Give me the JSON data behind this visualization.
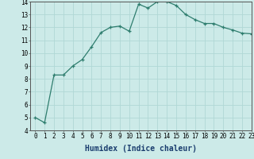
{
  "x": [
    0,
    1,
    2,
    3,
    4,
    5,
    6,
    7,
    8,
    9,
    10,
    11,
    12,
    13,
    14,
    15,
    16,
    17,
    18,
    19,
    20,
    21,
    22,
    23
  ],
  "y": [
    5.0,
    4.6,
    8.3,
    8.3,
    9.0,
    9.5,
    10.5,
    11.6,
    12.0,
    12.1,
    11.7,
    13.8,
    13.5,
    14.0,
    14.0,
    13.7,
    13.0,
    12.6,
    12.3,
    12.3,
    12.0,
    11.8,
    11.55,
    11.5
  ],
  "line_color": "#2e7d6e",
  "marker": "+",
  "marker_size": 3.5,
  "marker_lw": 0.9,
  "line_width": 0.9,
  "bg_color": "#cceae8",
  "grid_color": "#b0d8d5",
  "xlabel": "Humidex (Indice chaleur)",
  "xlim": [
    -0.5,
    23
  ],
  "ylim": [
    4,
    14
  ],
  "yticks": [
    4,
    5,
    6,
    7,
    8,
    9,
    10,
    11,
    12,
    13,
    14
  ],
  "xticks": [
    0,
    1,
    2,
    3,
    4,
    5,
    6,
    7,
    8,
    9,
    10,
    11,
    12,
    13,
    14,
    15,
    16,
    17,
    18,
    19,
    20,
    21,
    22,
    23
  ],
  "xtick_labels": [
    "0",
    "1",
    "2",
    "3",
    "4",
    "5",
    "6",
    "7",
    "8",
    "9",
    "10",
    "11",
    "12",
    "13",
    "14",
    "15",
    "16",
    "17",
    "18",
    "19",
    "20",
    "21",
    "22",
    "23"
  ],
  "xlabel_fontsize": 7,
  "tick_fontsize": 5.5,
  "xlabel_color": "#1a3d6e",
  "xlabel_family": "monospace",
  "xlabel_bold": true
}
